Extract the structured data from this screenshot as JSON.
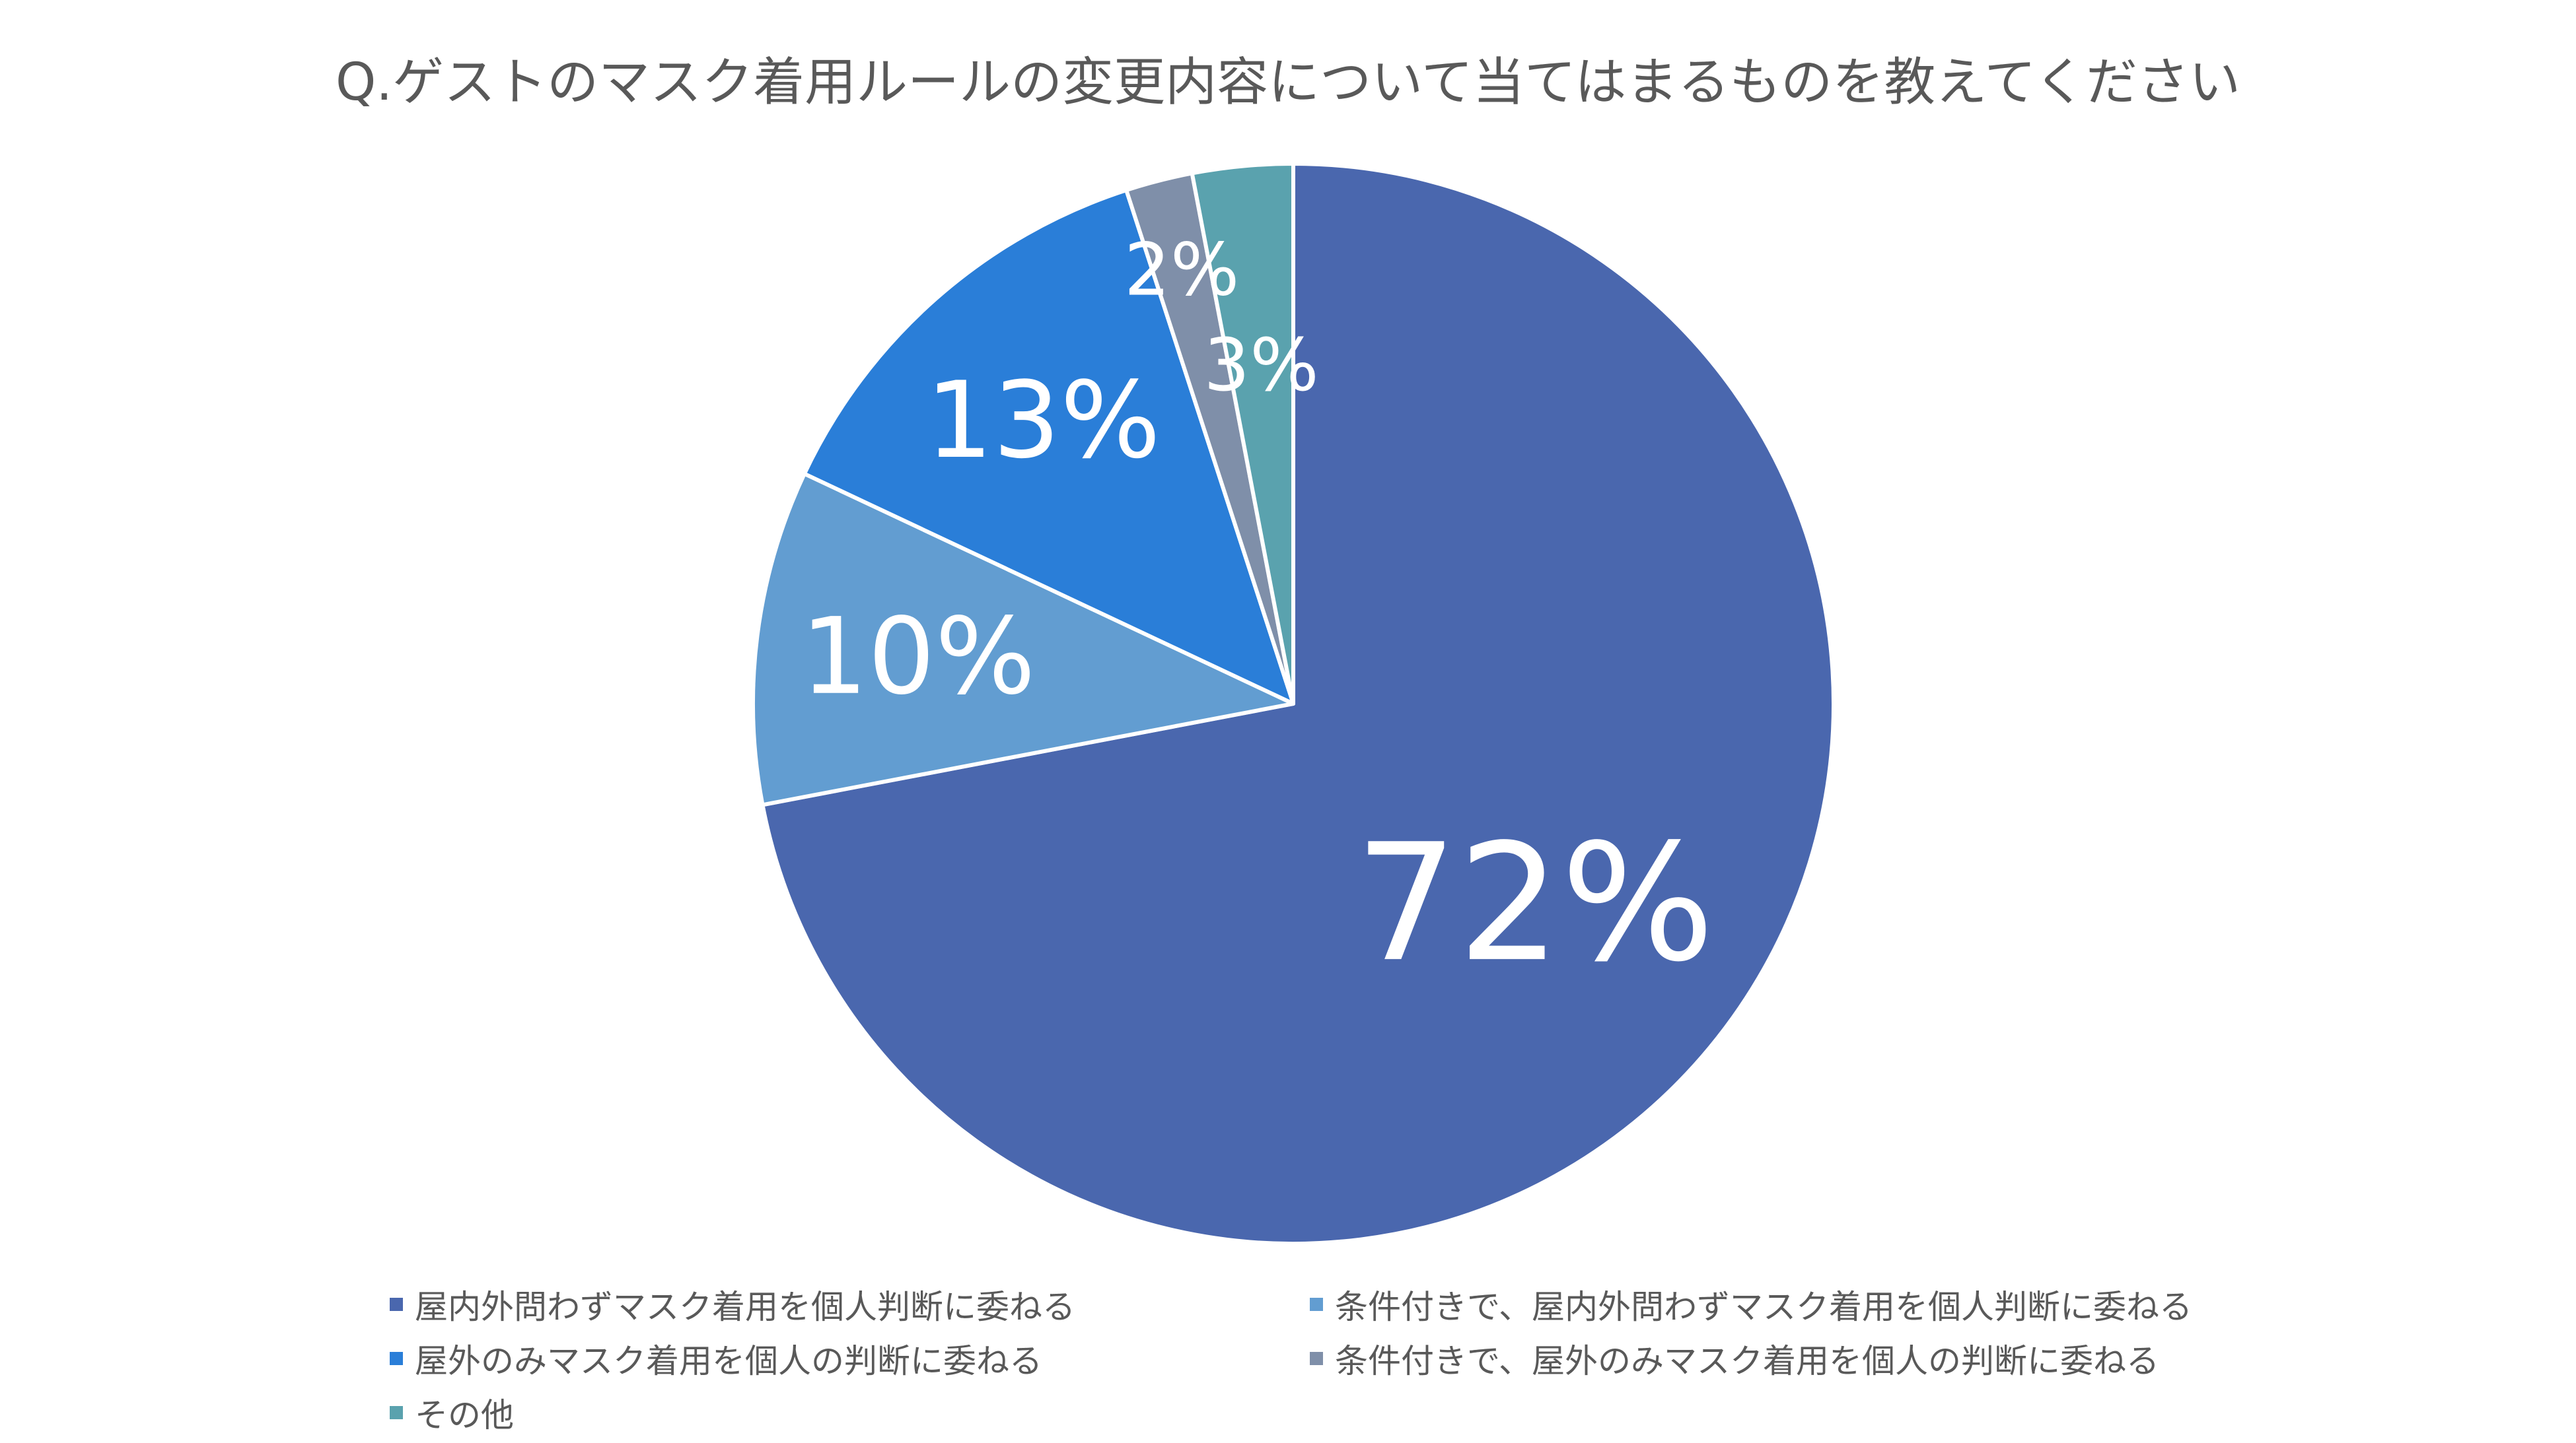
{
  "chart_data": {
    "type": "pie",
    "title": "Q.ゲストのマスク着用ルールの変更内容について当てはまるものを教えてください",
    "slices": [
      {
        "label": "屋内外問わずマスク着用を個人判断に委ねる",
        "value": 72,
        "display": "72%",
        "color": "#4A67AE"
      },
      {
        "label": "条件付きで、屋内外問わずマスク着用を個人判断に委ねる",
        "value": 10,
        "display": "10%",
        "color": "#629DD1"
      },
      {
        "label": "屋外のみマスク着用を個人の判断に委ねる",
        "value": 13,
        "display": "13%",
        "color": "#2A7ED8"
      },
      {
        "label": "条件付きで、屋外のみマスク着用を個人の判断に委ねる",
        "value": 2,
        "display": "2%",
        "color": "#7F8FA9"
      },
      {
        "label": "その他",
        "value": 3,
        "display": "3%",
        "color": "#5AA2AE"
      }
    ],
    "start_angle_deg": 0,
    "direction": "clockwise",
    "legend_position": "bottom"
  }
}
